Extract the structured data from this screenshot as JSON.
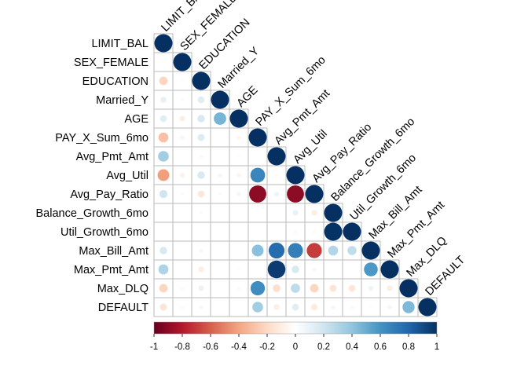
{
  "chart_data": {
    "type": "heatmap",
    "subtype": "correlation-lower-triangle-circles",
    "variables": [
      "LIMIT_BAL",
      "SEX_FEMALE",
      "EDUCATION",
      "Married_Y",
      "AGE",
      "PAY_X_Sum_6mo",
      "Avg_Pmt_Amt",
      "Avg_Util",
      "Avg_Pay_Ratio",
      "Balance_Growth_6mo",
      "Util_Growth_6mo",
      "Max_Bill_Amt",
      "Max_Pmt_Amt",
      "Max_DLQ",
      "DEFAULT"
    ],
    "matrix": [
      [
        1
      ],
      [
        0.02,
        1
      ],
      [
        -0.22,
        0.02,
        1
      ],
      [
        0.11,
        0.03,
        0.14,
        1
      ],
      [
        0.14,
        -0.09,
        0.17,
        0.47,
        1
      ],
      [
        -0.3,
        -0.06,
        0.15,
        0.01,
        -0.05,
        1
      ],
      [
        0.35,
        0.01,
        -0.04,
        -0.01,
        0.02,
        0.01,
        1
      ],
      [
        -0.42,
        -0.07,
        0.17,
        -0.05,
        -0.06,
        0.66,
        -0.03,
        1
      ],
      [
        0.2,
        0.03,
        -0.14,
        0.03,
        0.06,
        -0.9,
        0.08,
        -0.9,
        1
      ],
      [
        0.0,
        0.0,
        0.03,
        0.0,
        0.0,
        -0.01,
        0.0,
        0.1,
        -0.1,
        1
      ],
      [
        0.0,
        0.0,
        0.0,
        0.0,
        0.0,
        0.01,
        0.0,
        0.04,
        -0.04,
        0.99,
        1
      ],
      [
        0.17,
        0.0,
        0.05,
        0.0,
        0.0,
        0.42,
        0.77,
        0.69,
        -0.7,
        0.3,
        0.25,
        1
      ],
      [
        0.31,
        0.01,
        -0.1,
        0.0,
        0.02,
        0.0,
        0.96,
        0.17,
        0.05,
        0.0,
        0.0,
        0.58,
        1
      ],
      [
        -0.22,
        -0.04,
        0.09,
        0.0,
        -0.04,
        0.63,
        -0.18,
        0.26,
        -0.22,
        -0.15,
        -0.14,
        0.08,
        -0.1,
        1
      ],
      [
        -0.15,
        -0.04,
        0.05,
        0.0,
        0.01,
        0.35,
        -0.1,
        0.14,
        -0.12,
        -0.05,
        -0.04,
        0.02,
        -0.06,
        0.45,
        1
      ]
    ],
    "colorbar": {
      "min": -1,
      "max": 1,
      "ticks": [
        "-1",
        "-0.8",
        "-0.6",
        "-0.4",
        "-0.2",
        "0",
        "0.2",
        "0.4",
        "0.6",
        "0.8",
        "1"
      ]
    },
    "palette": [
      "#67001f",
      "#b2182b",
      "#d6604d",
      "#f4a582",
      "#fddbc7",
      "#ffffff",
      "#d1e5f0",
      "#92c5de",
      "#4393c3",
      "#2166ac",
      "#053061"
    ]
  }
}
